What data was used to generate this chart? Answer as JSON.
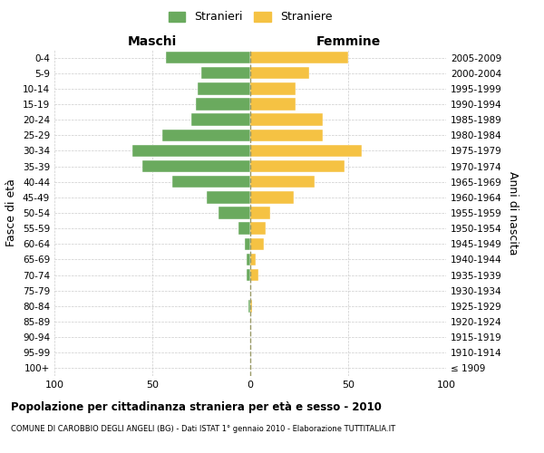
{
  "age_groups": [
    "100+",
    "95-99",
    "90-94",
    "85-89",
    "80-84",
    "75-79",
    "70-74",
    "65-69",
    "60-64",
    "55-59",
    "50-54",
    "45-49",
    "40-44",
    "35-39",
    "30-34",
    "25-29",
    "20-24",
    "15-19",
    "10-14",
    "5-9",
    "0-4"
  ],
  "birth_years": [
    "≤ 1909",
    "1910-1914",
    "1915-1919",
    "1920-1924",
    "1925-1929",
    "1930-1934",
    "1935-1939",
    "1940-1944",
    "1945-1949",
    "1950-1954",
    "1955-1959",
    "1960-1964",
    "1965-1969",
    "1970-1974",
    "1975-1979",
    "1980-1984",
    "1985-1989",
    "1990-1994",
    "1995-1999",
    "2000-2004",
    "2005-2009"
  ],
  "maschi": [
    0,
    0,
    0,
    0,
    1,
    0,
    2,
    2,
    3,
    6,
    16,
    22,
    40,
    55,
    60,
    45,
    30,
    28,
    27,
    25,
    43
  ],
  "femmine": [
    0,
    0,
    0,
    0,
    1,
    0,
    4,
    3,
    7,
    8,
    10,
    22,
    33,
    48,
    57,
    37,
    37,
    23,
    23,
    30,
    50
  ],
  "color_maschi": "#6aaa5e",
  "color_femmine": "#f5c243",
  "title": "Popolazione per cittadinanza straniera per età e sesso - 2010",
  "subtitle": "COMUNE DI CAROBBIO DEGLI ANGELI (BG) - Dati ISTAT 1° gennaio 2010 - Elaborazione TUTTITALIA.IT",
  "ylabel_left": "Fasce di età",
  "ylabel_right": "Anni di nascita",
  "xlabel_left": "Maschi",
  "xlabel_right": "Femmine",
  "legend_maschi": "Stranieri",
  "legend_femmine": "Straniere",
  "xlim": 100,
  "background_color": "#ffffff",
  "grid_color": "#cccccc",
  "dashed_line_color": "#999966"
}
